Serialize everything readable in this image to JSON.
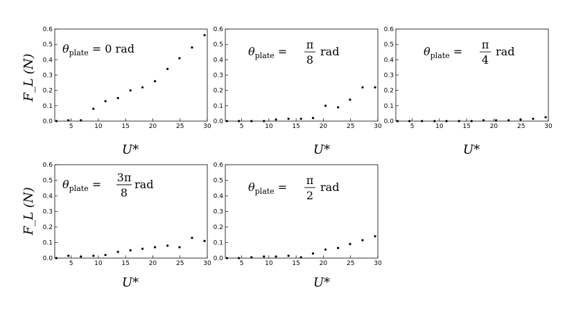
{
  "figure": {
    "ylabel": "F_L (N)",
    "xlabel": "U*"
  },
  "chart_data": [
    {
      "type": "scatter",
      "title": "θplate = 0 rad",
      "xlabel": "U*",
      "ylabel": "F_L (N)",
      "xlim": [
        2,
        30
      ],
      "ylim": [
        0,
        0.6
      ],
      "xticks": [
        5,
        10,
        15,
        20,
        25,
        30
      ],
      "yticks": [
        0.0,
        0.1,
        0.2,
        0.3,
        0.4,
        0.5,
        0.6
      ],
      "series": [
        {
          "x": [
            2.3,
            4.5,
            6.8,
            9.1,
            11.3,
            13.6,
            15.9,
            18.1,
            20.4,
            22.7,
            24.9,
            27.2,
            29.5
          ],
          "y": [
            0.0,
            0.005,
            0.005,
            0.08,
            0.13,
            0.15,
            0.2,
            0.22,
            0.26,
            0.34,
            0.41,
            0.48,
            0.56
          ]
        }
      ]
    },
    {
      "type": "scatter",
      "title": "θplate = π/8 rad",
      "xlabel": "U*",
      "ylabel": "",
      "xlim": [
        2,
        30
      ],
      "ylim": [
        0,
        0.6
      ],
      "xticks": [
        5,
        10,
        15,
        20,
        25,
        30
      ],
      "yticks": [
        0.0,
        0.1,
        0.2,
        0.3,
        0.4,
        0.5,
        0.6
      ],
      "series": [
        {
          "x": [
            2.3,
            4.5,
            6.8,
            9.1,
            11.3,
            13.6,
            15.9,
            18.1,
            20.4,
            22.7,
            24.9,
            27.2,
            29.5
          ],
          "y": [
            0.0,
            0.0,
            0.0,
            0.0,
            0.01,
            0.015,
            0.015,
            0.02,
            0.1,
            0.09,
            0.14,
            0.22,
            0.22
          ]
        }
      ]
    },
    {
      "type": "scatter",
      "title": "θplate = π/4 rad",
      "xlabel": "U*",
      "ylabel": "",
      "xlim": [
        2,
        30
      ],
      "ylim": [
        0,
        0.6
      ],
      "xticks": [
        5,
        10,
        15,
        20,
        25,
        30
      ],
      "yticks": [
        0.0,
        0.1,
        0.2,
        0.3,
        0.4,
        0.5,
        0.6
      ],
      "series": [
        {
          "x": [
            2.3,
            4.5,
            6.8,
            9.1,
            11.3,
            13.6,
            15.9,
            18.1,
            20.4,
            22.7,
            24.9,
            27.2,
            29.5
          ],
          "y": [
            0.0,
            0.0,
            0.0,
            0.0,
            0.0,
            0.0,
            0.0,
            0.005,
            0.005,
            0.005,
            0.01,
            0.015,
            0.025
          ]
        }
      ]
    },
    {
      "type": "scatter",
      "title": "θplate = 3π/8 rad",
      "xlabel": "U*",
      "ylabel": "F_L (N)",
      "xlim": [
        2,
        30
      ],
      "ylim": [
        0,
        0.6
      ],
      "xticks": [
        5,
        10,
        15,
        20,
        25,
        30
      ],
      "yticks": [
        0.0,
        0.1,
        0.2,
        0.3,
        0.4,
        0.5,
        0.6
      ],
      "series": [
        {
          "x": [
            2.3,
            4.5,
            6.8,
            9.1,
            11.3,
            13.6,
            15.9,
            18.1,
            20.4,
            22.7,
            24.9,
            27.2,
            29.5
          ],
          "y": [
            0.0,
            0.015,
            0.01,
            0.015,
            0.02,
            0.04,
            0.05,
            0.06,
            0.07,
            0.08,
            0.07,
            0.13,
            0.11
          ]
        }
      ]
    },
    {
      "type": "scatter",
      "title": "θplate = π/2 rad",
      "xlabel": "U*",
      "ylabel": "",
      "xlim": [
        2,
        30
      ],
      "ylim": [
        0,
        0.6
      ],
      "xticks": [
        5,
        10,
        15,
        20,
        25,
        30
      ],
      "yticks": [
        0.0,
        0.1,
        0.2,
        0.3,
        0.4,
        0.5,
        0.6
      ],
      "series": [
        {
          "x": [
            2.3,
            4.5,
            6.8,
            9.1,
            11.3,
            13.6,
            15.9,
            18.1,
            20.4,
            22.7,
            24.9,
            27.2,
            29.5
          ],
          "y": [
            0.0,
            0.0,
            0.005,
            0.01,
            0.01,
            0.015,
            0.005,
            0.03,
            0.055,
            0.065,
            0.09,
            0.115,
            0.14
          ]
        }
      ]
    }
  ]
}
